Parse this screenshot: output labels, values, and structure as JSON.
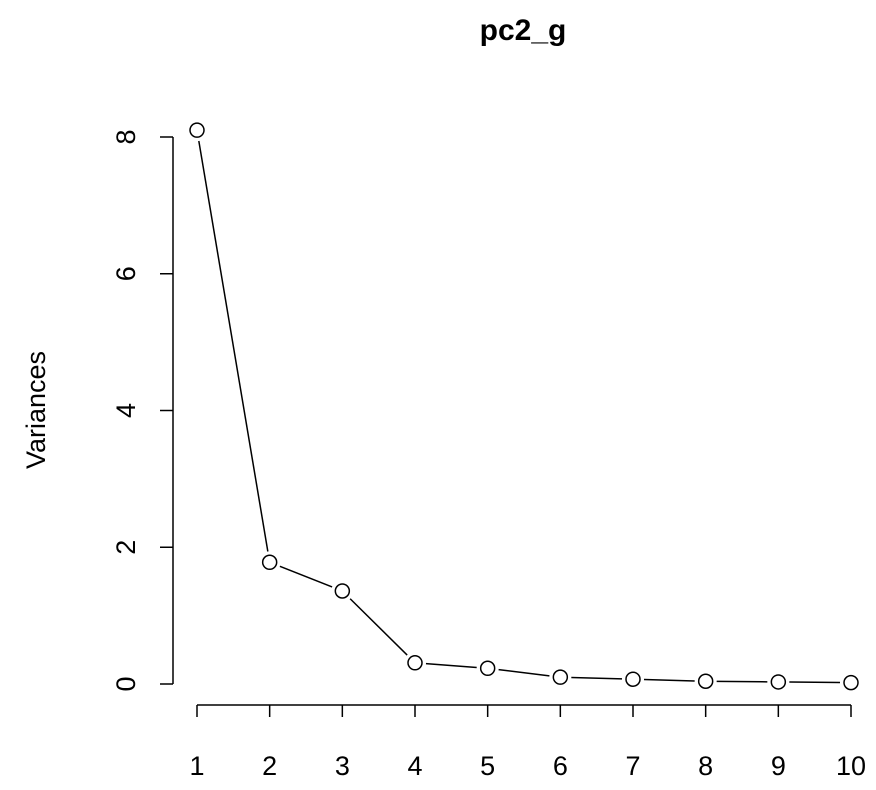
{
  "chart_data": {
    "type": "line",
    "title": "pc2_g",
    "y_label": "Variances",
    "categories": [
      "1",
      "2",
      "3",
      "4",
      "5",
      "6",
      "7",
      "8",
      "9",
      "10"
    ],
    "values": [
      8.1,
      1.78,
      1.36,
      0.31,
      0.23,
      0.1,
      0.07,
      0.04,
      0.03,
      0.02
    ],
    "color": "#000000",
    "ylim": [
      0,
      8
    ],
    "yticks": [
      0,
      2,
      4,
      6,
      8
    ],
    "grid": false
  }
}
